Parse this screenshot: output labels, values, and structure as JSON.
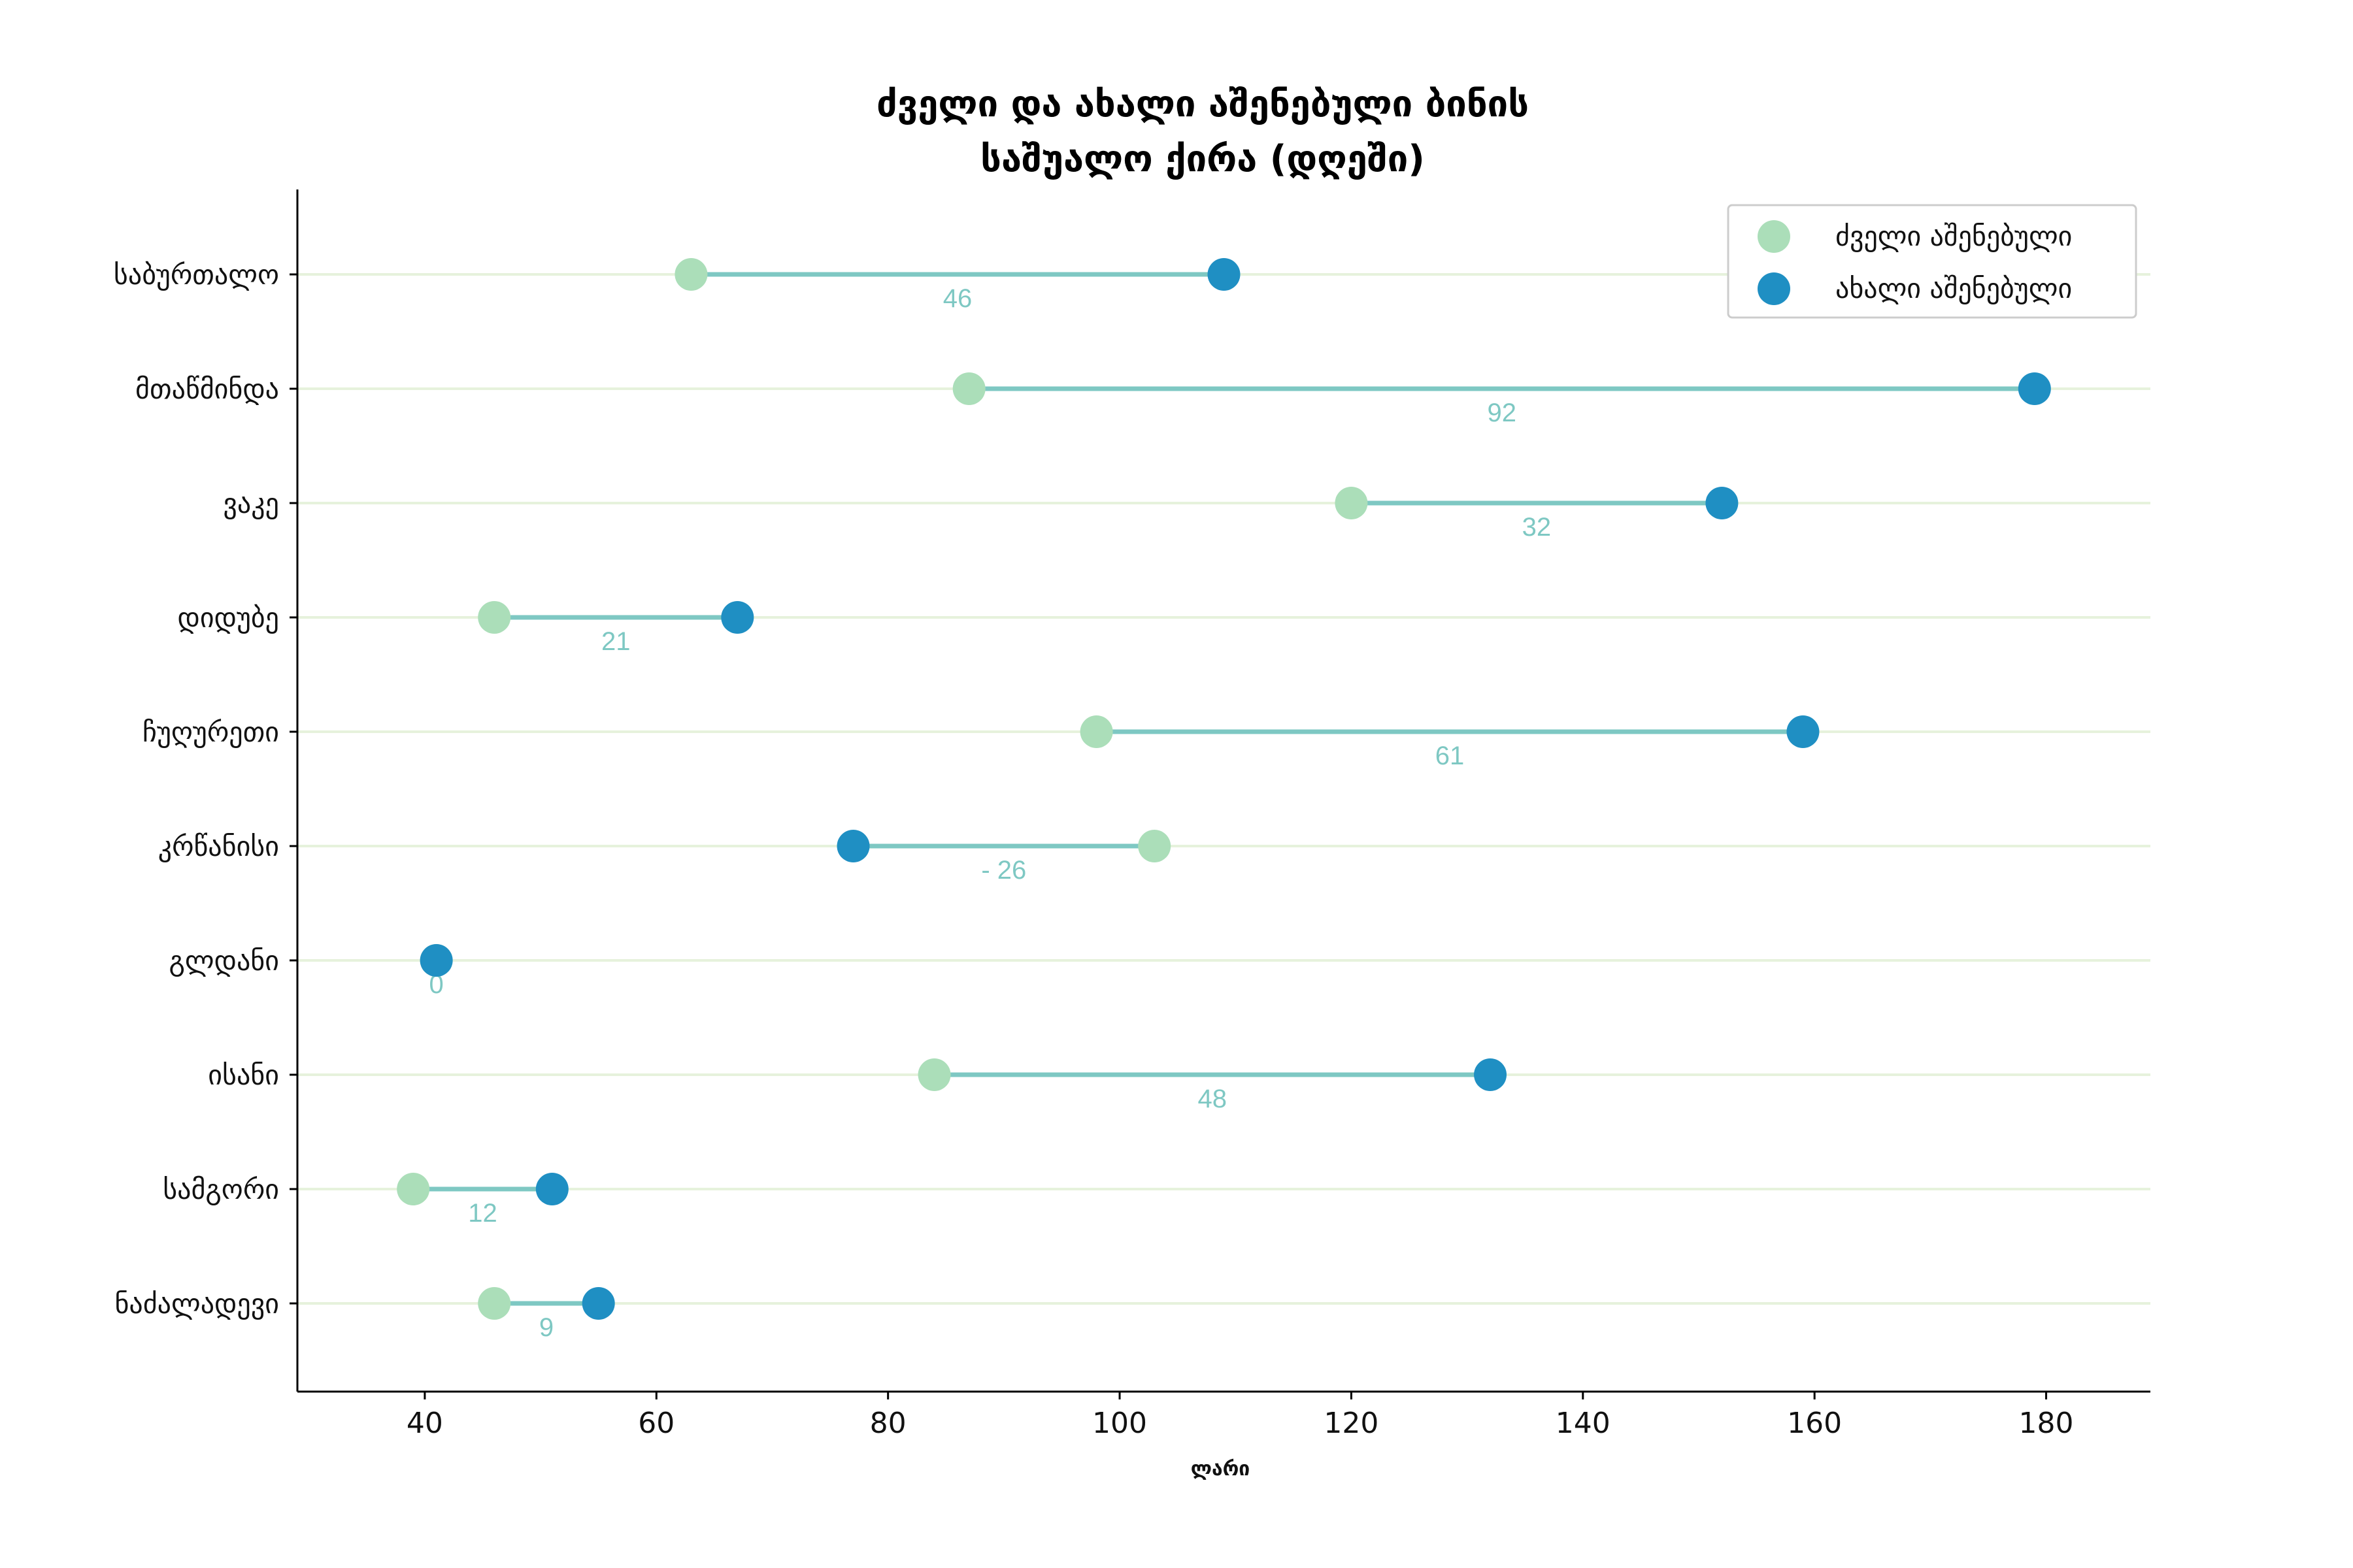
{
  "chart_data": {
    "type": "dumbbell",
    "title_lines": [
      "ძველი და ახალი აშენებული ბინის",
      "საშუალო ქირა (დღეში)"
    ],
    "xlabel": "ლარი",
    "xlim": [
      29,
      189
    ],
    "xticks": [
      40,
      60,
      80,
      100,
      120,
      140,
      160,
      180
    ],
    "categories": [
      "საბურთალო",
      "მთაწმინდა",
      "ვაკე",
      "დიდუბე",
      "ჩუღურეთი",
      "კრწანისი",
      "გლდანი",
      "ისანი",
      "სამგორი",
      "ნაძალადევი"
    ],
    "series": [
      {
        "name": "ძველი აშენებული",
        "color": "#abdeb9",
        "values": [
          63,
          87,
          120,
          46,
          98,
          103,
          41,
          84,
          39,
          46
        ]
      },
      {
        "name": "ახალი აშენებული",
        "color": "#1f8fc3",
        "values": [
          109,
          179,
          152,
          67,
          159,
          77,
          41,
          132,
          51,
          55
        ]
      }
    ],
    "difference_labels": [
      "46",
      "92",
      "32",
      "21",
      "61",
      "- 26",
      "0",
      "48",
      "12",
      "9"
    ],
    "connector_color": "#7ec8c3",
    "gridline_color": "#e6f2dc",
    "legend_position": "top-right"
  }
}
